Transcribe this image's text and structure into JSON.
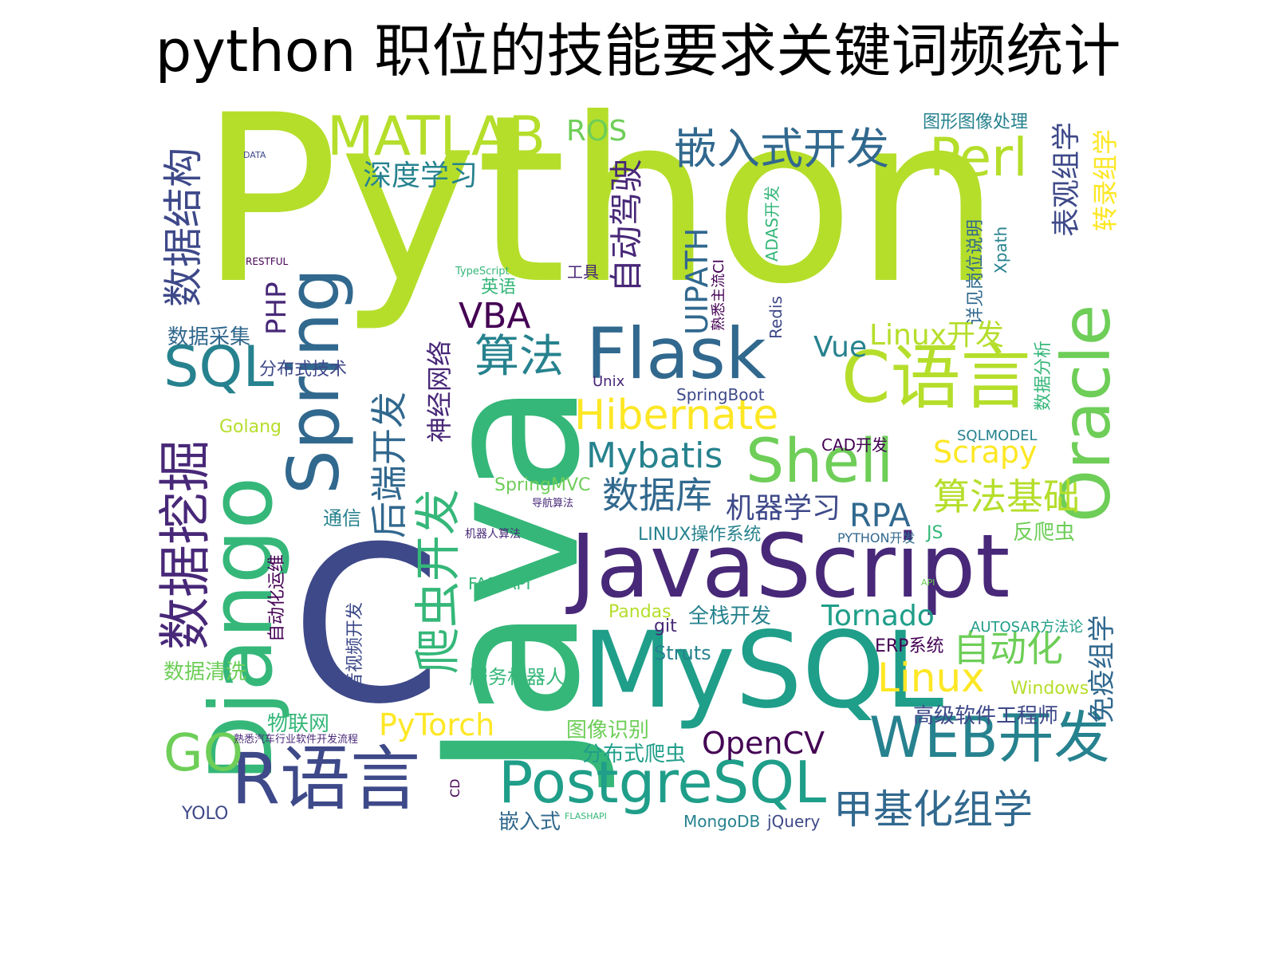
{
  "title": "python 职位的技能要求关键词频统计",
  "palette": {
    "yellow": "#fde725",
    "lime": "#b5de2b",
    "green": "#6ece58",
    "teal_green": "#35b779",
    "teal": "#1f9e89",
    "steel": "#26828e",
    "blue": "#31688e",
    "indigo": "#3e4989",
    "purple": "#482878",
    "dark_purple": "#440154"
  },
  "words": [
    {
      "text": "Python",
      "color": "#b5de2b"
    },
    {
      "text": "Java",
      "color": "#35b779"
    },
    {
      "text": "C",
      "color": "#3e4989"
    },
    {
      "text": "JavaScript",
      "color": "#482878"
    },
    {
      "text": "MySQL",
      "color": "#1f9e89"
    },
    {
      "text": "Django",
      "color": "#35b779"
    },
    {
      "text": "Flask",
      "color": "#31688e"
    },
    {
      "text": "Oracle",
      "color": "#6ece58"
    },
    {
      "text": "C语言",
      "color": "#b5de2b"
    },
    {
      "text": "R语言",
      "color": "#3e4989"
    },
    {
      "text": "数据挖掘",
      "color": "#482878"
    },
    {
      "text": "Spring",
      "color": "#31688e"
    },
    {
      "text": "爬虫开发",
      "color": "#35b779"
    },
    {
      "text": "PostgreSQL",
      "color": "#1f9e89"
    },
    {
      "text": "WEB开发",
      "color": "#26828e"
    },
    {
      "text": "Shell",
      "color": "#6ece58"
    },
    {
      "text": "MATLAB",
      "color": "#b5de2b"
    },
    {
      "text": "嵌入式开发",
      "color": "#31688e"
    },
    {
      "text": "Perl",
      "color": "#b5de2b"
    },
    {
      "text": "SQL",
      "color": "#26828e"
    },
    {
      "text": "Hibernate",
      "color": "#fde725"
    },
    {
      "text": "数据结构",
      "color": "#3e4989"
    },
    {
      "text": "后端开发",
      "color": "#31688e"
    },
    {
      "text": "算法",
      "color": "#26828e"
    },
    {
      "text": "自动驾驶",
      "color": "#482878"
    },
    {
      "text": "GO",
      "color": "#6ece58"
    },
    {
      "text": "甲基化组学",
      "color": "#31688e"
    },
    {
      "text": "Linux",
      "color": "#fde725"
    },
    {
      "text": "算法基础",
      "color": "#b5de2b"
    },
    {
      "text": "数据库",
      "color": "#31688e"
    },
    {
      "text": "Mybatis",
      "color": "#26828e"
    },
    {
      "text": "自动化",
      "color": "#6ece58"
    },
    {
      "text": "PyTorch",
      "color": "#fde725"
    },
    {
      "text": "UIPATH",
      "color": "#31688e"
    },
    {
      "text": "VBA",
      "color": "#440154"
    },
    {
      "text": "Tornado",
      "color": "#1f9e89"
    },
    {
      "text": "OpenCV",
      "color": "#440154"
    },
    {
      "text": "Scrapy",
      "color": "#fde725"
    },
    {
      "text": "RPA",
      "color": "#31688e"
    },
    {
      "text": "机器学习",
      "color": "#3e4989"
    },
    {
      "text": "深度学习",
      "color": "#26828e"
    },
    {
      "text": "ROS",
      "color": "#6ece58"
    },
    {
      "text": "表观组学",
      "color": "#3e4989"
    },
    {
      "text": "转录组学",
      "color": "#fde725"
    },
    {
      "text": "免疫组学",
      "color": "#31688e"
    },
    {
      "text": "神经网络",
      "color": "#482878"
    },
    {
      "text": "Vue",
      "color": "#26828e"
    },
    {
      "text": "Linux开发",
      "color": "#b5de2b"
    },
    {
      "text": "PHP",
      "color": "#482878"
    },
    {
      "text": "数据采集",
      "color": "#31688e"
    },
    {
      "text": "分布式技术",
      "color": "#3e4989"
    },
    {
      "text": "Golang",
      "color": "#b5de2b"
    },
    {
      "text": "数据清洗",
      "color": "#6ece58"
    },
    {
      "text": "物联网",
      "color": "#35b779"
    },
    {
      "text": "YOLO",
      "color": "#3e4989"
    },
    {
      "text": "嵌入式",
      "color": "#31688e"
    },
    {
      "text": "分布式爬虫",
      "color": "#1f9e89"
    },
    {
      "text": "图像识别",
      "color": "#6ece58"
    },
    {
      "text": "全栈开发",
      "color": "#26828e"
    },
    {
      "text": "服务机器人",
      "color": "#35b779"
    },
    {
      "text": "Pandas",
      "color": "#b5de2b"
    },
    {
      "text": "Struts",
      "color": "#26828e"
    },
    {
      "text": "git",
      "color": "#482878"
    },
    {
      "text": "高级软件工程师",
      "color": "#3e4989"
    },
    {
      "text": "ERP系统",
      "color": "#440154"
    },
    {
      "text": "Windows",
      "color": "#b5de2b"
    },
    {
      "text": "AUTOSAR方法论",
      "color": "#1f9e89"
    },
    {
      "text": "反爬虫",
      "color": "#6ece58"
    },
    {
      "text": "JS",
      "color": "#35b779"
    },
    {
      "text": "PYTHON开发",
      "color": "#31688e"
    },
    {
      "text": "LINUX操作系统",
      "color": "#26828e"
    },
    {
      "text": "SQLMODEL",
      "color": "#26828e"
    },
    {
      "text": "CAD开发",
      "color": "#440154"
    },
    {
      "text": "SpringBoot",
      "color": "#3e4989"
    },
    {
      "text": "Unix",
      "color": "#482878"
    },
    {
      "text": "SpringMVC",
      "color": "#6ece58"
    },
    {
      "text": "导航算法",
      "color": "#482878"
    },
    {
      "text": "机器人算法",
      "color": "#482878"
    },
    {
      "text": "通信",
      "color": "#26828e"
    },
    {
      "text": "FASTAPI",
      "color": "#35b779"
    },
    {
      "text": "MongoDB",
      "color": "#26828e"
    },
    {
      "text": "jQuery",
      "color": "#3e4989"
    },
    {
      "text": "FLASHAPI",
      "color": "#35b779"
    },
    {
      "text": "CD",
      "color": "#440154"
    },
    {
      "text": "熟悉汽车行业软件开发流程",
      "color": "#482878"
    },
    {
      "text": "音视频开发",
      "color": "#3e4989"
    },
    {
      "text": "自动化运维",
      "color": "#440154"
    },
    {
      "text": "API",
      "color": "#6ece58"
    },
    {
      "text": "数据分析",
      "color": "#35b779"
    },
    {
      "text": "详见岗位说明",
      "color": "#31688e"
    },
    {
      "text": "Xpath",
      "color": "#26828e"
    },
    {
      "text": "图形图像处理",
      "color": "#26828e"
    },
    {
      "text": "ADAS开发",
      "color": "#35b779"
    },
    {
      "text": "熟悉主流CI",
      "color": "#440154"
    },
    {
      "text": "Redis",
      "color": "#3e4989"
    },
    {
      "text": "工具",
      "color": "#482878"
    },
    {
      "text": "英语",
      "color": "#35b779"
    },
    {
      "text": "TypeScript",
      "color": "#35b779"
    },
    {
      "text": "RESTFUL",
      "color": "#440154"
    },
    {
      "text": "DATA",
      "color": "#3e4989"
    }
  ]
}
